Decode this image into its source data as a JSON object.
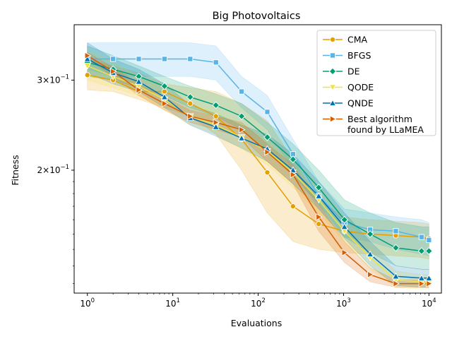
{
  "chart_data": {
    "type": "line",
    "title": "Big Photovoltaics",
    "xlabel": "Evaluations",
    "ylabel": "Fitness",
    "xscale": "log",
    "yscale": "log",
    "xlim": [
      0.7,
      14000
    ],
    "ylim": [
      0.115,
      0.385
    ],
    "x_ticks": [
      {
        "value": 1,
        "base": "10",
        "exp": "0"
      },
      {
        "value": 10,
        "base": "10",
        "exp": "1"
      },
      {
        "value": 100,
        "base": "10",
        "exp": "2"
      },
      {
        "value": 1000,
        "base": "10",
        "exp": "3"
      },
      {
        "value": 10000,
        "base": "10",
        "exp": "4"
      }
    ],
    "y_ticks": [
      {
        "value": 0.2,
        "mant": "2",
        "base": "10",
        "exp": "−1"
      },
      {
        "value": 0.3,
        "mant": "3",
        "base": "10",
        "exp": "−1"
      }
    ],
    "grid": false,
    "legend_position": "top-right",
    "series": [
      {
        "name": "CMA",
        "color": "#E69F00",
        "marker": "circle",
        "x": [
          1,
          2,
          4,
          8,
          16,
          32,
          64,
          128,
          256,
          512,
          1024,
          2048,
          4096,
          8192,
          10000
        ],
        "y": [
          0.307,
          0.3,
          0.285,
          0.285,
          0.27,
          0.255,
          0.23,
          0.198,
          0.17,
          0.157,
          0.152,
          0.15,
          0.149,
          0.148,
          0.147
        ],
        "upper": [
          0.33,
          0.32,
          0.31,
          0.295,
          0.29,
          0.285,
          0.27,
          0.25,
          0.21,
          0.175,
          0.162,
          0.16,
          0.159,
          0.158,
          0.157
        ],
        "lower": [
          0.287,
          0.285,
          0.275,
          0.265,
          0.255,
          0.235,
          0.2,
          0.165,
          0.145,
          0.14,
          0.138,
          0.137,
          0.136,
          0.135,
          0.134
        ]
      },
      {
        "name": "BFGS",
        "color": "#56B4E9",
        "marker": "square",
        "x": [
          1,
          2,
          4,
          8,
          16,
          32,
          64,
          128,
          256,
          512,
          1024,
          2048,
          4096,
          8192,
          10000
        ],
        "y": [
          0.33,
          0.33,
          0.33,
          0.33,
          0.33,
          0.325,
          0.285,
          0.26,
          0.215,
          0.178,
          0.158,
          0.153,
          0.152,
          0.148,
          0.146
        ],
        "upper": [
          0.355,
          0.355,
          0.355,
          0.355,
          0.355,
          0.35,
          0.305,
          0.28,
          0.23,
          0.19,
          0.168,
          0.165,
          0.162,
          0.16,
          0.158
        ],
        "lower": [
          0.315,
          0.305,
          0.305,
          0.305,
          0.305,
          0.3,
          0.265,
          0.24,
          0.2,
          0.168,
          0.148,
          0.145,
          0.14,
          0.137,
          0.136
        ]
      },
      {
        "name": "DE",
        "color": "#009E73",
        "marker": "diamond",
        "x": [
          1,
          2,
          4,
          8,
          16,
          32,
          64,
          128,
          256,
          512,
          1024,
          2048,
          4096,
          8192,
          10000
        ],
        "y": [
          0.325,
          0.315,
          0.305,
          0.292,
          0.278,
          0.268,
          0.255,
          0.232,
          0.21,
          0.185,
          0.16,
          0.15,
          0.141,
          0.139,
          0.139
        ],
        "upper": [
          0.35,
          0.335,
          0.32,
          0.305,
          0.292,
          0.282,
          0.27,
          0.248,
          0.225,
          0.2,
          0.175,
          0.165,
          0.158,
          0.155,
          0.155
        ],
        "lower": [
          0.305,
          0.3,
          0.29,
          0.28,
          0.265,
          0.255,
          0.24,
          0.218,
          0.195,
          0.172,
          0.148,
          0.138,
          0.13,
          0.128,
          0.128
        ]
      },
      {
        "name": "QODE",
        "color": "#F0E442",
        "marker": "triangle-down",
        "x": [
          1,
          2,
          4,
          8,
          16,
          32,
          64,
          128,
          256,
          512,
          1024,
          2048,
          4096,
          8192,
          10000
        ],
        "y": [
          0.32,
          0.305,
          0.292,
          0.275,
          0.255,
          0.245,
          0.232,
          0.218,
          0.198,
          0.175,
          0.152,
          0.135,
          0.122,
          0.121,
          0.12
        ],
        "upper": [
          0.345,
          0.325,
          0.305,
          0.29,
          0.27,
          0.26,
          0.245,
          0.23,
          0.21,
          0.188,
          0.162,
          0.142,
          0.127,
          0.125,
          0.125
        ],
        "lower": [
          0.3,
          0.29,
          0.28,
          0.262,
          0.245,
          0.235,
          0.22,
          0.205,
          0.185,
          0.165,
          0.145,
          0.128,
          0.118,
          0.117,
          0.117
        ]
      },
      {
        "name": "QNDE",
        "color": "#0072B2",
        "marker": "triangle-up",
        "x": [
          1,
          2,
          4,
          8,
          16,
          32,
          64,
          128,
          256,
          512,
          1024,
          2048,
          4096,
          8192,
          10000
        ],
        "y": [
          0.33,
          0.31,
          0.298,
          0.278,
          0.253,
          0.243,
          0.231,
          0.22,
          0.2,
          0.178,
          0.155,
          0.137,
          0.124,
          0.123,
          0.123
        ],
        "upper": [
          0.355,
          0.33,
          0.315,
          0.295,
          0.268,
          0.258,
          0.245,
          0.235,
          0.215,
          0.19,
          0.165,
          0.145,
          0.13,
          0.128,
          0.128
        ],
        "lower": [
          0.31,
          0.295,
          0.285,
          0.265,
          0.245,
          0.233,
          0.221,
          0.208,
          0.188,
          0.168,
          0.147,
          0.13,
          0.119,
          0.118,
          0.118
        ]
      },
      {
        "name": "Best algorithm\nfound by LLaMEA",
        "color": "#D55E00",
        "marker": "triangle-right",
        "x": [
          1,
          2,
          4,
          8,
          16,
          32,
          64,
          128,
          256,
          512,
          1024,
          2048,
          4096,
          8192,
          10000
        ],
        "y": [
          0.335,
          0.312,
          0.287,
          0.27,
          0.255,
          0.248,
          0.24,
          0.217,
          0.196,
          0.162,
          0.138,
          0.125,
          0.12,
          0.12,
          0.12
        ],
        "upper": [
          0.34,
          0.318,
          0.295,
          0.278,
          0.262,
          0.255,
          0.248,
          0.225,
          0.205,
          0.172,
          0.145,
          0.129,
          0.122,
          0.122,
          0.122
        ],
        "lower": [
          0.33,
          0.305,
          0.28,
          0.262,
          0.248,
          0.24,
          0.232,
          0.208,
          0.188,
          0.152,
          0.132,
          0.121,
          0.118,
          0.118,
          0.118
        ]
      }
    ]
  }
}
